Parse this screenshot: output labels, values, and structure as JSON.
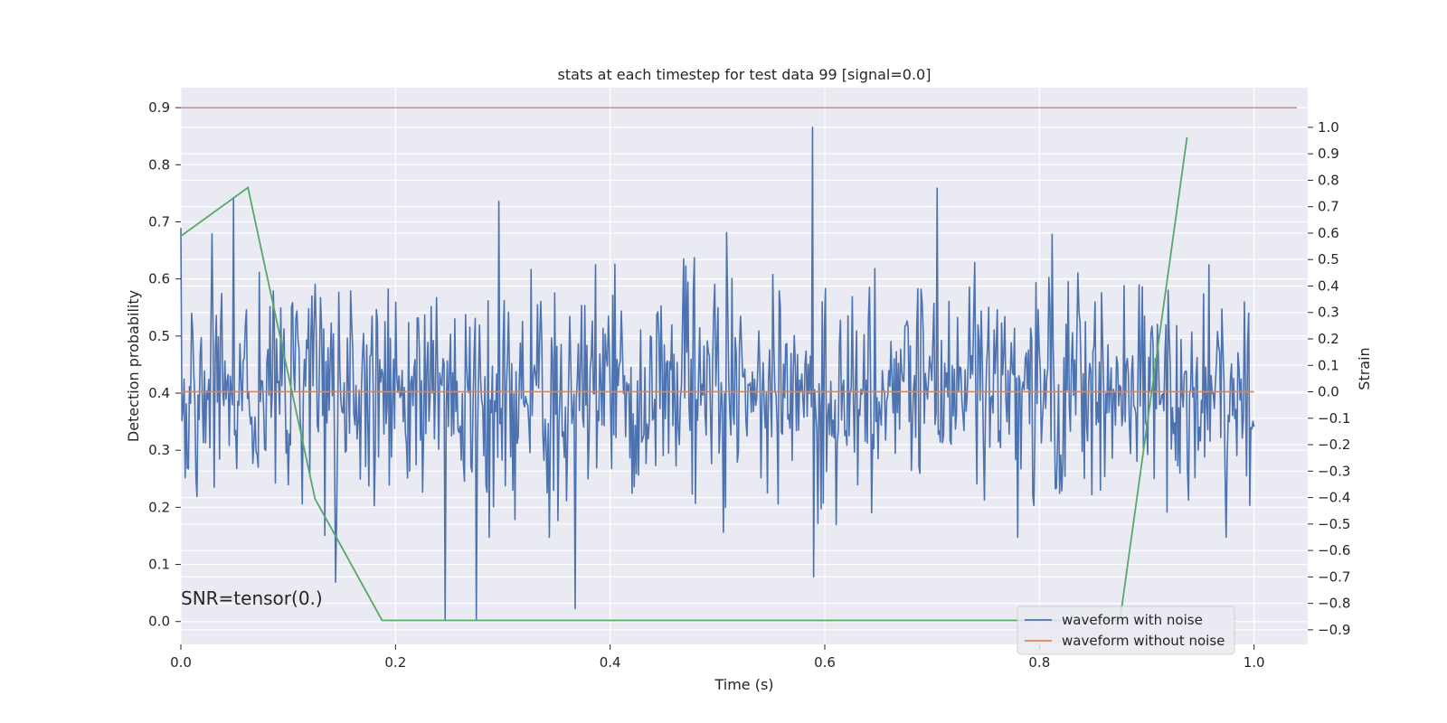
{
  "chart_data": {
    "type": "line",
    "title": "stats at each timestep for test data 99 [signal=0.0]",
    "xlabel": "Time (s)",
    "ylabel": "Detection probability",
    "y2label": "Strain",
    "xlim": [
      0.0,
      1.05
    ],
    "ylim": [
      -0.04,
      0.935
    ],
    "y2lim": [
      -0.955,
      1.15
    ],
    "x_ticks": [
      0.0,
      0.2,
      0.4,
      0.6,
      0.8,
      1.0
    ],
    "x_tick_labels": [
      "0.0",
      "0.2",
      "0.4",
      "0.6",
      "0.8",
      "1.0"
    ],
    "y_ticks": [
      0.0,
      0.1,
      0.2,
      0.3,
      0.4,
      0.5,
      0.6,
      0.7,
      0.8,
      0.9
    ],
    "y_tick_labels": [
      "0.0",
      "0.1",
      "0.2",
      "0.3",
      "0.4",
      "0.5",
      "0.6",
      "0.7",
      "0.8",
      "0.9"
    ],
    "y2_ticks": [
      1.0,
      0.9,
      0.8,
      0.7,
      0.6,
      0.5,
      0.4,
      0.3,
      0.2,
      0.1,
      0.0,
      -0.1,
      -0.2,
      -0.3,
      -0.4,
      -0.5,
      -0.6,
      -0.7,
      -0.8,
      -0.9
    ],
    "y2_tick_labels": [
      "1.0",
      "0.9",
      "0.8",
      "0.7",
      "0.6",
      "0.5",
      "0.4",
      "0.3",
      "0.2",
      "0.1",
      "0.0",
      "−0.1",
      "−0.2",
      "−0.3",
      "−0.4",
      "−0.5",
      "−0.6",
      "−0.7",
      "−0.8",
      "−0.9"
    ],
    "grid": true,
    "legend_position": "bottom-right",
    "annotation": "SNR=tensor(0.)",
    "series": [
      {
        "name": "waveform with noise",
        "axis": "right",
        "color": "#4c72b0",
        "description_points": 1000,
        "x_start": 0.0,
        "x_end": 1.0,
        "y_min": -0.86,
        "y_max": 1.0,
        "spikes": [
          {
            "x": 0.589,
            "y": 1.0
          },
          {
            "x": 0.589,
            "y": -0.7
          },
          {
            "x": 0.245,
            "y": -0.86
          },
          {
            "x": 0.275,
            "y": -0.86
          },
          {
            "x": 0.367,
            "y": -0.82
          },
          {
            "x": 0.144,
            "y": -0.72
          },
          {
            "x": 0.704,
            "y": 0.77
          },
          {
            "x": 0.049,
            "y": 0.73
          },
          {
            "x": 0.295,
            "y": 0.72
          }
        ]
      },
      {
        "name": "waveform without noise",
        "axis": "right",
        "color": "#dd8452",
        "x": [
          0.0,
          1.0
        ],
        "y": [
          0.0,
          0.0
        ]
      },
      {
        "name": "",
        "axis": "left",
        "color": "#55a868",
        "x": [
          0.0,
          0.0625,
          0.125,
          0.1875,
          0.25,
          0.3125,
          0.375,
          0.4375,
          0.5,
          0.5625,
          0.625,
          0.6875,
          0.75,
          0.8125,
          0.875,
          0.9375
        ],
        "y": [
          0.675,
          0.76,
          0.215,
          0.002,
          0.002,
          0.002,
          0.002,
          0.002,
          0.002,
          0.002,
          0.002,
          0.002,
          0.002,
          0.002,
          0.002,
          0.848
        ]
      },
      {
        "name": "",
        "axis": "left",
        "color": "#c44e52",
        "x": [
          0.0,
          1.04
        ],
        "y": [
          0.9,
          0.9
        ]
      }
    ]
  }
}
